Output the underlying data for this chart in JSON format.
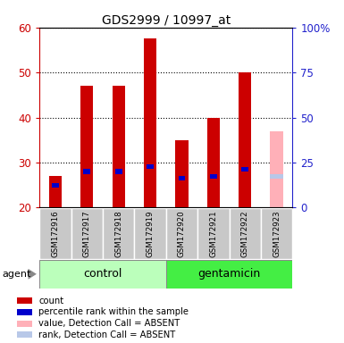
{
  "title": "GDS2999 / 10997_at",
  "samples": [
    "GSM172916",
    "GSM172917",
    "GSM172918",
    "GSM172919",
    "GSM172920",
    "GSM172921",
    "GSM172922",
    "GSM172923"
  ],
  "count_values": [
    27,
    47,
    47,
    57.5,
    35,
    40,
    50,
    null
  ],
  "rank_values": [
    25,
    28,
    28,
    29,
    26.5,
    27,
    28.5,
    null
  ],
  "absent_value": 37,
  "absent_rank": 27,
  "ylim_left": [
    20,
    60
  ],
  "ylim_right": [
    0,
    100
  ],
  "left_ticks": [
    20,
    30,
    40,
    50,
    60
  ],
  "right_ticks": [
    0,
    25,
    50,
    75,
    100
  ],
  "right_labels": [
    "0",
    "25",
    "50",
    "75",
    "100%"
  ],
  "bar_width": 0.4,
  "count_color": "#cc0000",
  "rank_color": "#0000cc",
  "absent_bar_color": "#ffb0b8",
  "absent_rank_color": "#b8c8e8",
  "left_axis_color": "#cc0000",
  "right_axis_color": "#2222cc",
  "grid_color": "#000000",
  "bg_plot": "#ffffff",
  "bg_sample_row": "#c8c8c8",
  "bg_control": "#bbffbb",
  "bg_gentamicin": "#44ee44",
  "legend_items": [
    {
      "color": "#cc0000",
      "label": "count"
    },
    {
      "color": "#0000cc",
      "label": "percentile rank within the sample"
    },
    {
      "color": "#ffb0b8",
      "label": "value, Detection Call = ABSENT"
    },
    {
      "color": "#b8c8e8",
      "label": "rank, Detection Call = ABSENT"
    }
  ],
  "agent_label": "agent",
  "control_label": "control",
  "gentamicin_label": "gentamicin",
  "n_control": 4,
  "n_gentamicin": 4
}
